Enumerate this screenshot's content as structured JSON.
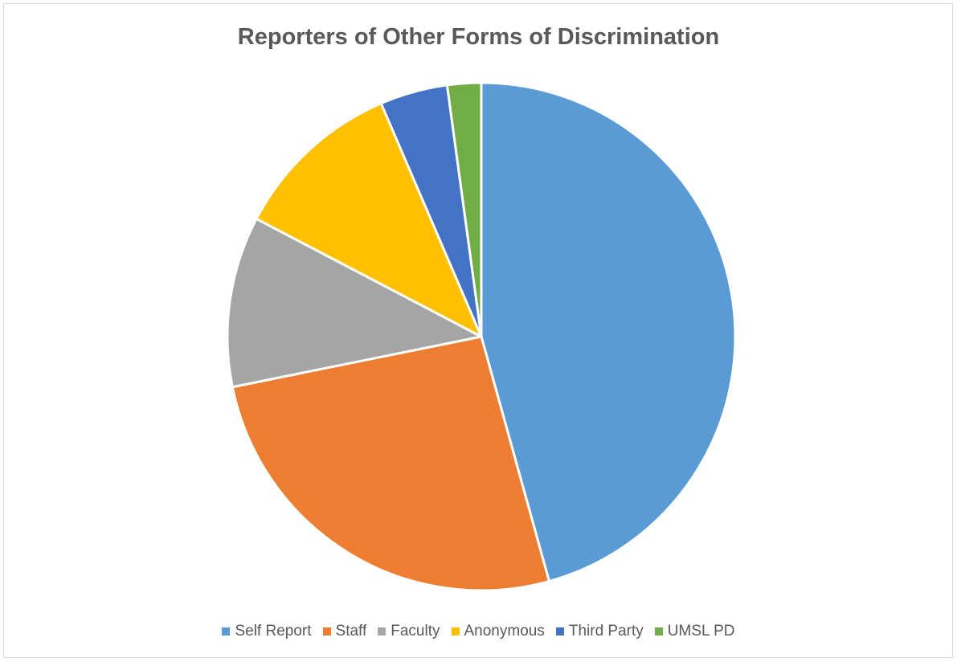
{
  "chart_data": {
    "type": "pie",
    "title": "Reporters of Other Forms of Discrimination",
    "categories": [
      "Self Report",
      "Staff",
      "Faculty",
      "Anonymous",
      "Third Party",
      "UMSL PD"
    ],
    "values": [
      46.7,
      26.7,
      11.1,
      11.1,
      4.4,
      2.2
    ],
    "colors": [
      "#5b9bd5",
      "#ed7d31",
      "#a5a5a5",
      "#ffc000",
      "#4472c4",
      "#70ad47"
    ],
    "legend_position": "bottom",
    "start_angle": "12 o'clock, clockwise"
  }
}
